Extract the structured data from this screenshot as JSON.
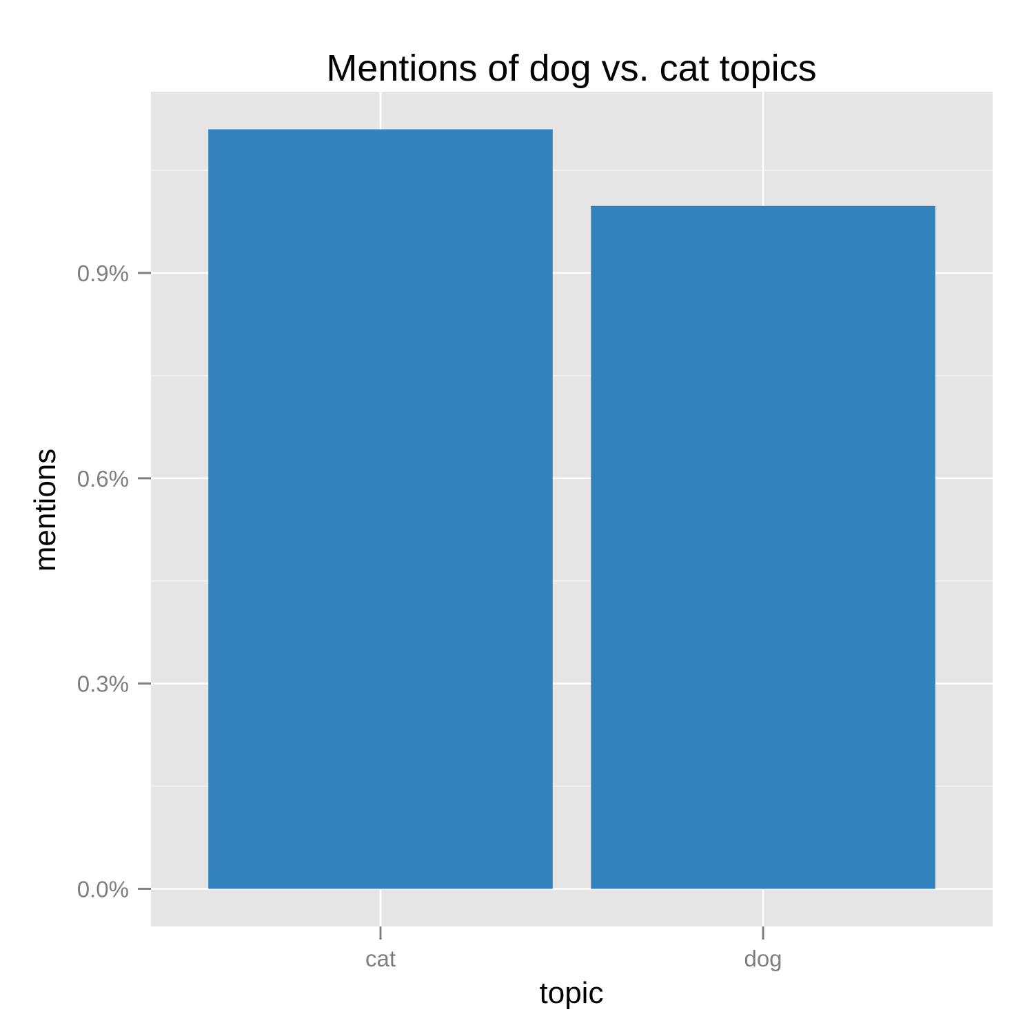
{
  "chart_data": {
    "type": "bar",
    "title": "Mentions of dog vs. cat topics",
    "xlabel": "topic",
    "ylabel": "mentions",
    "categories": [
      "cat",
      "dog"
    ],
    "values": [
      1.11,
      0.998
    ],
    "value_unit": "%",
    "ylim": [
      -0.055,
      1.165
    ],
    "yticks": [
      0.0,
      0.3,
      0.6,
      0.9
    ],
    "ytick_labels": [
      "0.0%",
      "0.3%",
      "0.6%",
      "0.9%"
    ],
    "y_minor_gridlines": [
      0.15,
      0.45,
      0.75,
      1.05
    ],
    "grid": true,
    "legend": "none",
    "colors": {
      "bar": "#3482BD",
      "panel_background": "#E5E5E5",
      "gridline": "#FFFFFF",
      "tick_label": "#7F7F7F",
      "tick_mark": "#7F7F7F",
      "text": "#000000"
    }
  }
}
